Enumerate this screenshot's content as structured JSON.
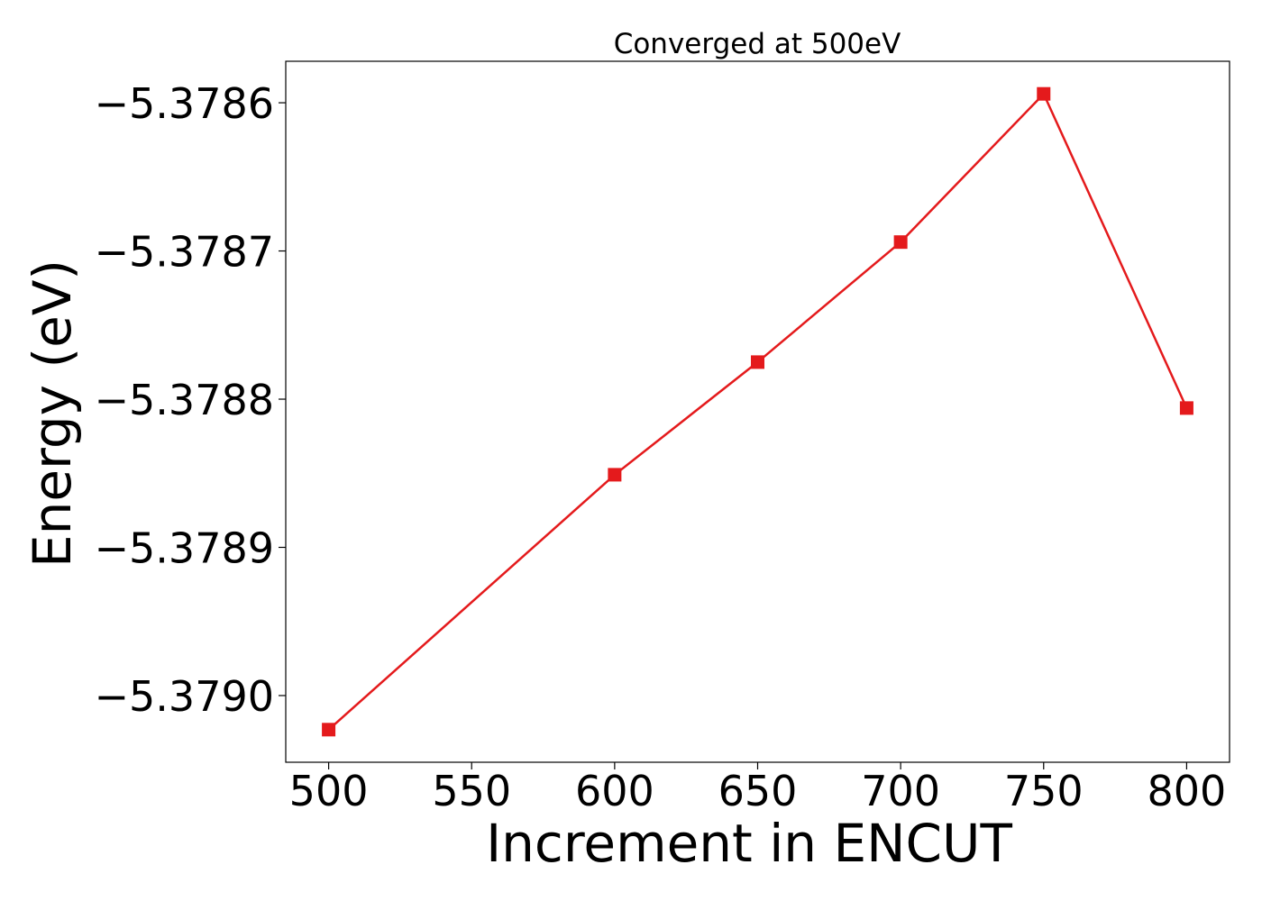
{
  "chart_data": {
    "type": "line",
    "title": "Converged at 500eV",
    "xlabel": "Increment in ENCUT",
    "ylabel": "Energy (eV)",
    "series": [
      {
        "color": "#e41a1c",
        "marker": "square",
        "x": [
          500,
          600,
          650,
          700,
          750,
          800
        ],
        "y": [
          -5.379023,
          -5.378851,
          -5.378775,
          -5.378694,
          -5.378594,
          -5.378806
        ]
      }
    ],
    "x_ticks": [
      500,
      550,
      600,
      650,
      700,
      750,
      800
    ],
    "x_tick_labels": [
      "500",
      "550",
      "600",
      "650",
      "700",
      "750",
      "800"
    ],
    "y_ticks": [
      -5.3786,
      -5.3787,
      -5.3788,
      -5.3789,
      -5.379
    ],
    "y_tick_labels": [
      "−5.3786",
      "−5.3787",
      "−5.3788",
      "−5.3789",
      "−5.3790"
    ],
    "xlim": [
      485,
      815
    ],
    "ylim": [
      -5.379045,
      -5.378572
    ],
    "grid": false,
    "legend": "none"
  }
}
